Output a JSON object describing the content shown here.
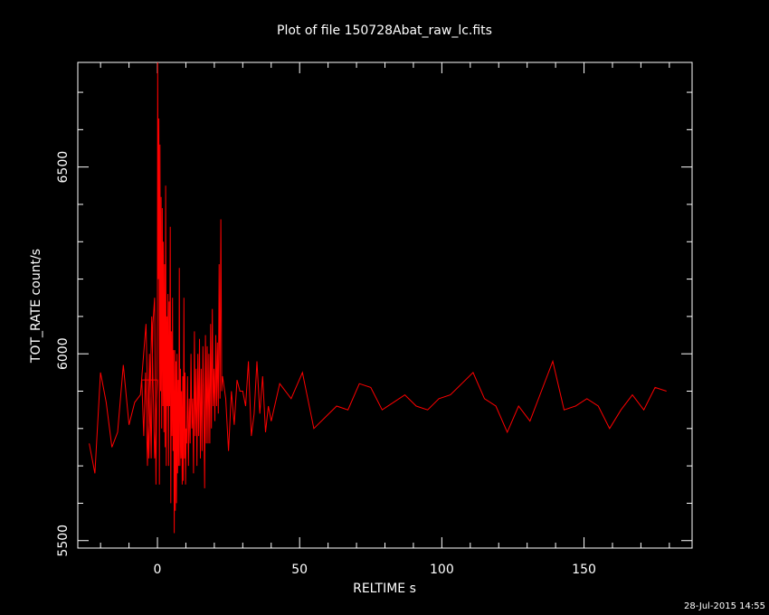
{
  "chart_data": {
    "type": "line",
    "title": "Plot of file 150728Abat_raw_lc.fits",
    "xlabel": "RELTIME  s",
    "ylabel": "TOT_RATE  count/s",
    "xlim": [
      -28,
      188
    ],
    "ylim": [
      5480,
      6780
    ],
    "xticks": [
      "0",
      "50",
      "100",
      "150"
    ],
    "xtick_values": [
      0,
      50,
      100,
      150
    ],
    "yticks": [
      "5500",
      "6000",
      "6500"
    ],
    "ytick_values": [
      5500,
      6000,
      6500
    ],
    "grid": false,
    "colors": {
      "background": "#000000",
      "axes": "#ffffff",
      "series": "#ff0000"
    },
    "series": [
      {
        "name": "",
        "points": [
          [
            -24,
            5760
          ],
          [
            -22,
            5680
          ],
          [
            -20,
            5950
          ],
          [
            -18,
            5870
          ],
          [
            -16,
            5750
          ],
          [
            -14,
            5790
          ],
          [
            -12,
            5970
          ],
          [
            -10,
            5810
          ],
          [
            -8,
            5870
          ],
          [
            -6,
            5890
          ],
          [
            -4,
            6080
          ],
          [
            -3,
            5720
          ],
          [
            -2,
            6100
          ],
          [
            -1,
            5720
          ],
          [
            0,
            5930
          ],
          [
            -5.5,
            5930
          ],
          [
            -4.8,
            5780
          ],
          [
            -4.2,
            5950
          ],
          [
            -3.5,
            5700
          ],
          [
            -2.8,
            6000
          ],
          [
            -2.2,
            5720
          ],
          [
            -1.6,
            6080
          ],
          [
            -1,
            6150
          ],
          [
            -0.5,
            5650
          ],
          [
            0,
            6100
          ],
          [
            0.1,
            6780
          ],
          [
            0.3,
            6200
          ],
          [
            0.5,
            6630
          ],
          [
            0.7,
            5650
          ],
          [
            0.9,
            6560
          ],
          [
            1.1,
            5900
          ],
          [
            1.3,
            6420
          ],
          [
            1.5,
            5800
          ],
          [
            1.7,
            6390
          ],
          [
            1.9,
            5860
          ],
          [
            2.1,
            6300
          ],
          [
            2.3,
            5790
          ],
          [
            2.5,
            6240
          ],
          [
            2.7,
            5750
          ],
          [
            2.9,
            6450
          ],
          [
            3.1,
            5700
          ],
          [
            3.3,
            6100
          ],
          [
            3.5,
            5860
          ],
          [
            3.7,
            6160
          ],
          [
            3.9,
            5700
          ],
          [
            4.1,
            6140
          ],
          [
            4.3,
            5860
          ],
          [
            4.5,
            6340
          ],
          [
            4.7,
            5600
          ],
          [
            4.9,
            6060
          ],
          [
            5.1,
            5780
          ],
          [
            5.3,
            6150
          ],
          [
            5.5,
            5740
          ],
          [
            5.7,
            6010
          ],
          [
            5.9,
            5520
          ],
          [
            6.1,
            6010
          ],
          [
            6.3,
            5580
          ],
          [
            6.5,
            5980
          ],
          [
            6.7,
            5600
          ],
          [
            6.9,
            6000
          ],
          [
            7.1,
            5680
          ],
          [
            7.3,
            5930
          ],
          [
            7.5,
            5700
          ],
          [
            7.7,
            6230
          ],
          [
            7.9,
            5700
          ],
          [
            8.1,
            5960
          ],
          [
            8.3,
            5720
          ],
          [
            8.5,
            5900
          ],
          [
            8.7,
            5650
          ],
          [
            8.9,
            5940
          ],
          [
            9.1,
            5660
          ],
          [
            9.3,
            6150
          ],
          [
            9.5,
            5720
          ],
          [
            9.7,
            5950
          ],
          [
            9.9,
            5650
          ],
          [
            10.1,
            5800
          ],
          [
            10.3,
            5760
          ],
          [
            10.6,
            5940
          ],
          [
            10.9,
            5700
          ],
          [
            11.2,
            5880
          ],
          [
            11.5,
            5760
          ],
          [
            11.8,
            6000
          ],
          [
            12.1,
            5800
          ],
          [
            12.4,
            5880
          ],
          [
            12.7,
            5680
          ],
          [
            13,
            6060
          ],
          [
            13.3,
            5780
          ],
          [
            13.6,
            5960
          ],
          [
            13.9,
            5700
          ],
          [
            14.2,
            6000
          ],
          [
            14.5,
            5780
          ],
          [
            14.8,
            6040
          ],
          [
            15.1,
            5720
          ],
          [
            15.4,
            5960
          ],
          [
            15.7,
            5740
          ],
          [
            16,
            6020
          ],
          [
            16.3,
            5860
          ],
          [
            16.6,
            5640
          ],
          [
            16.9,
            6050
          ],
          [
            17.2,
            5760
          ],
          [
            17.5,
            6020
          ],
          [
            17.8,
            5760
          ],
          [
            18.1,
            6000
          ],
          [
            18.4,
            5760
          ],
          [
            18.7,
            6080
          ],
          [
            19,
            5800
          ],
          [
            19.3,
            6120
          ],
          [
            19.6,
            5860
          ],
          [
            19.9,
            5960
          ],
          [
            20.2,
            5820
          ],
          [
            20.5,
            6050
          ],
          [
            20.8,
            5860
          ],
          [
            21.1,
            6030
          ],
          [
            21.4,
            5840
          ],
          [
            21.7,
            6240
          ],
          [
            22,
            5880
          ],
          [
            22.3,
            6360
          ],
          [
            22.6,
            5900
          ],
          [
            22.9,
            5940
          ],
          [
            24,
            5880
          ],
          [
            25,
            5740
          ],
          [
            26,
            5900
          ],
          [
            27,
            5810
          ],
          [
            28,
            5930
          ],
          [
            29,
            5900
          ],
          [
            30,
            5900
          ],
          [
            31,
            5860
          ],
          [
            32,
            5980
          ],
          [
            33,
            5780
          ],
          [
            34,
            5840
          ],
          [
            35,
            5980
          ],
          [
            36,
            5840
          ],
          [
            37,
            5940
          ],
          [
            38,
            5790
          ],
          [
            39,
            5860
          ],
          [
            40,
            5820
          ],
          [
            43,
            5920
          ],
          [
            47,
            5880
          ],
          [
            51,
            5950
          ],
          [
            55,
            5800
          ],
          [
            59,
            5830
          ],
          [
            63,
            5860
          ],
          [
            67,
            5850
          ],
          [
            71,
            5920
          ],
          [
            75,
            5910
          ],
          [
            79,
            5850
          ],
          [
            83,
            5870
          ],
          [
            87,
            5890
          ],
          [
            91,
            5860
          ],
          [
            95,
            5850
          ],
          [
            99,
            5880
          ],
          [
            103,
            5890
          ],
          [
            107,
            5920
          ],
          [
            111,
            5950
          ],
          [
            115,
            5880
          ],
          [
            119,
            5860
          ],
          [
            123,
            5790
          ],
          [
            127,
            5860
          ],
          [
            131,
            5820
          ],
          [
            135,
            5900
          ],
          [
            139,
            5980
          ],
          [
            143,
            5850
          ],
          [
            147,
            5860
          ],
          [
            151,
            5880
          ],
          [
            155,
            5860
          ],
          [
            159,
            5800
          ],
          [
            163,
            5850
          ],
          [
            167,
            5890
          ],
          [
            171,
            5850
          ],
          [
            175,
            5910
          ],
          [
            179,
            5900
          ]
        ]
      }
    ]
  },
  "footer": {
    "timestamp": "28-Jul-2015 14:55"
  }
}
